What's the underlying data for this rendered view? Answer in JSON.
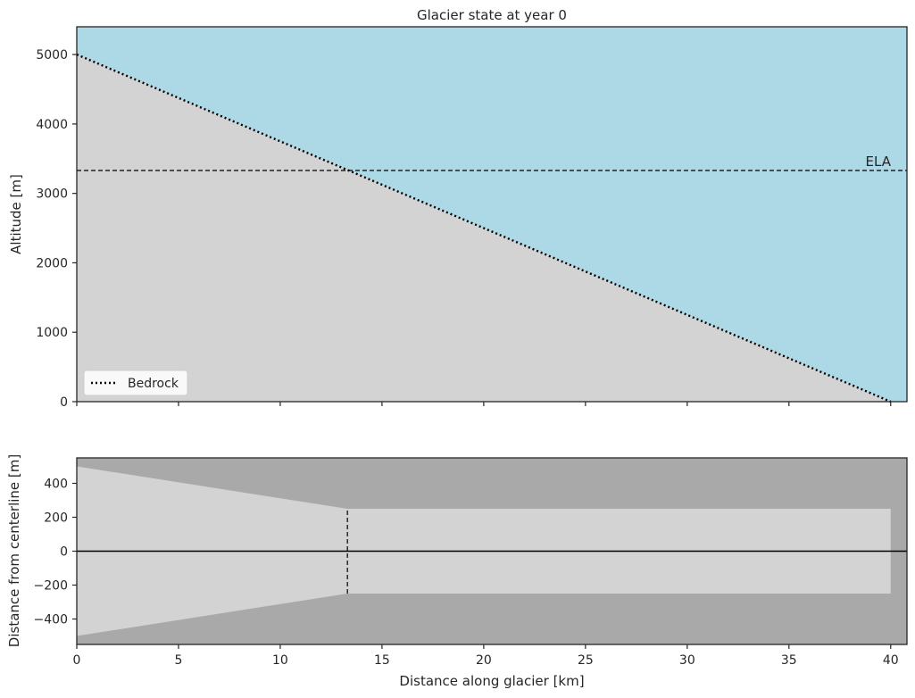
{
  "chart_data": [
    {
      "type": "area",
      "title": "Glacier state at year 0",
      "xlabel": "",
      "ylabel": "Altitude [m]",
      "xlim": [
        0,
        40.8
      ],
      "ylim": [
        0,
        5400
      ],
      "xticks": [
        0,
        5,
        10,
        15,
        20,
        25,
        30,
        35,
        40
      ],
      "yticks": [
        0,
        1000,
        2000,
        3000,
        4000,
        5000
      ],
      "ytick_labels": [
        "0",
        "1000",
        "2000",
        "3000",
        "4000",
        "5000"
      ],
      "colors": {
        "sky": "#add8e6",
        "ground": "#d3d3d3",
        "bedrock_line": "#000000",
        "ela_line": "#000000"
      },
      "series": [
        {
          "name": "Bedrock",
          "style": "dotted",
          "x": [
            0,
            40
          ],
          "y": [
            5000,
            0
          ]
        }
      ],
      "ela": {
        "label": "ELA",
        "value": 3330
      },
      "legend": {
        "position": "lower-left",
        "entries": [
          "Bedrock"
        ]
      }
    },
    {
      "type": "area",
      "title": "",
      "xlabel": "Distance along glacier [km]",
      "ylabel": "Distance from centerline [m]",
      "xlim": [
        0,
        40.8
      ],
      "ylim": [
        -550,
        550
      ],
      "xticks": [
        0,
        5,
        10,
        15,
        20,
        25,
        30,
        35,
        40
      ],
      "xtick_labels": [
        "0",
        "5",
        "10",
        "15",
        "20",
        "25",
        "30",
        "35",
        "40"
      ],
      "yticks": [
        -400,
        -200,
        0,
        200,
        400
      ],
      "ytick_labels": [
        "−400",
        "−200",
        "0",
        "200",
        "400"
      ],
      "colors": {
        "background": "#a9a9a9",
        "glacier_bed": "#d3d3d3",
        "centerline": "#000000"
      },
      "width_profile": {
        "x": [
          0,
          13.3,
          40
        ],
        "half_width": [
          500,
          250,
          250
        ]
      },
      "ela_marker": {
        "x": 13.3,
        "y": [
          -250,
          250
        ]
      },
      "centerline": 0
    }
  ]
}
